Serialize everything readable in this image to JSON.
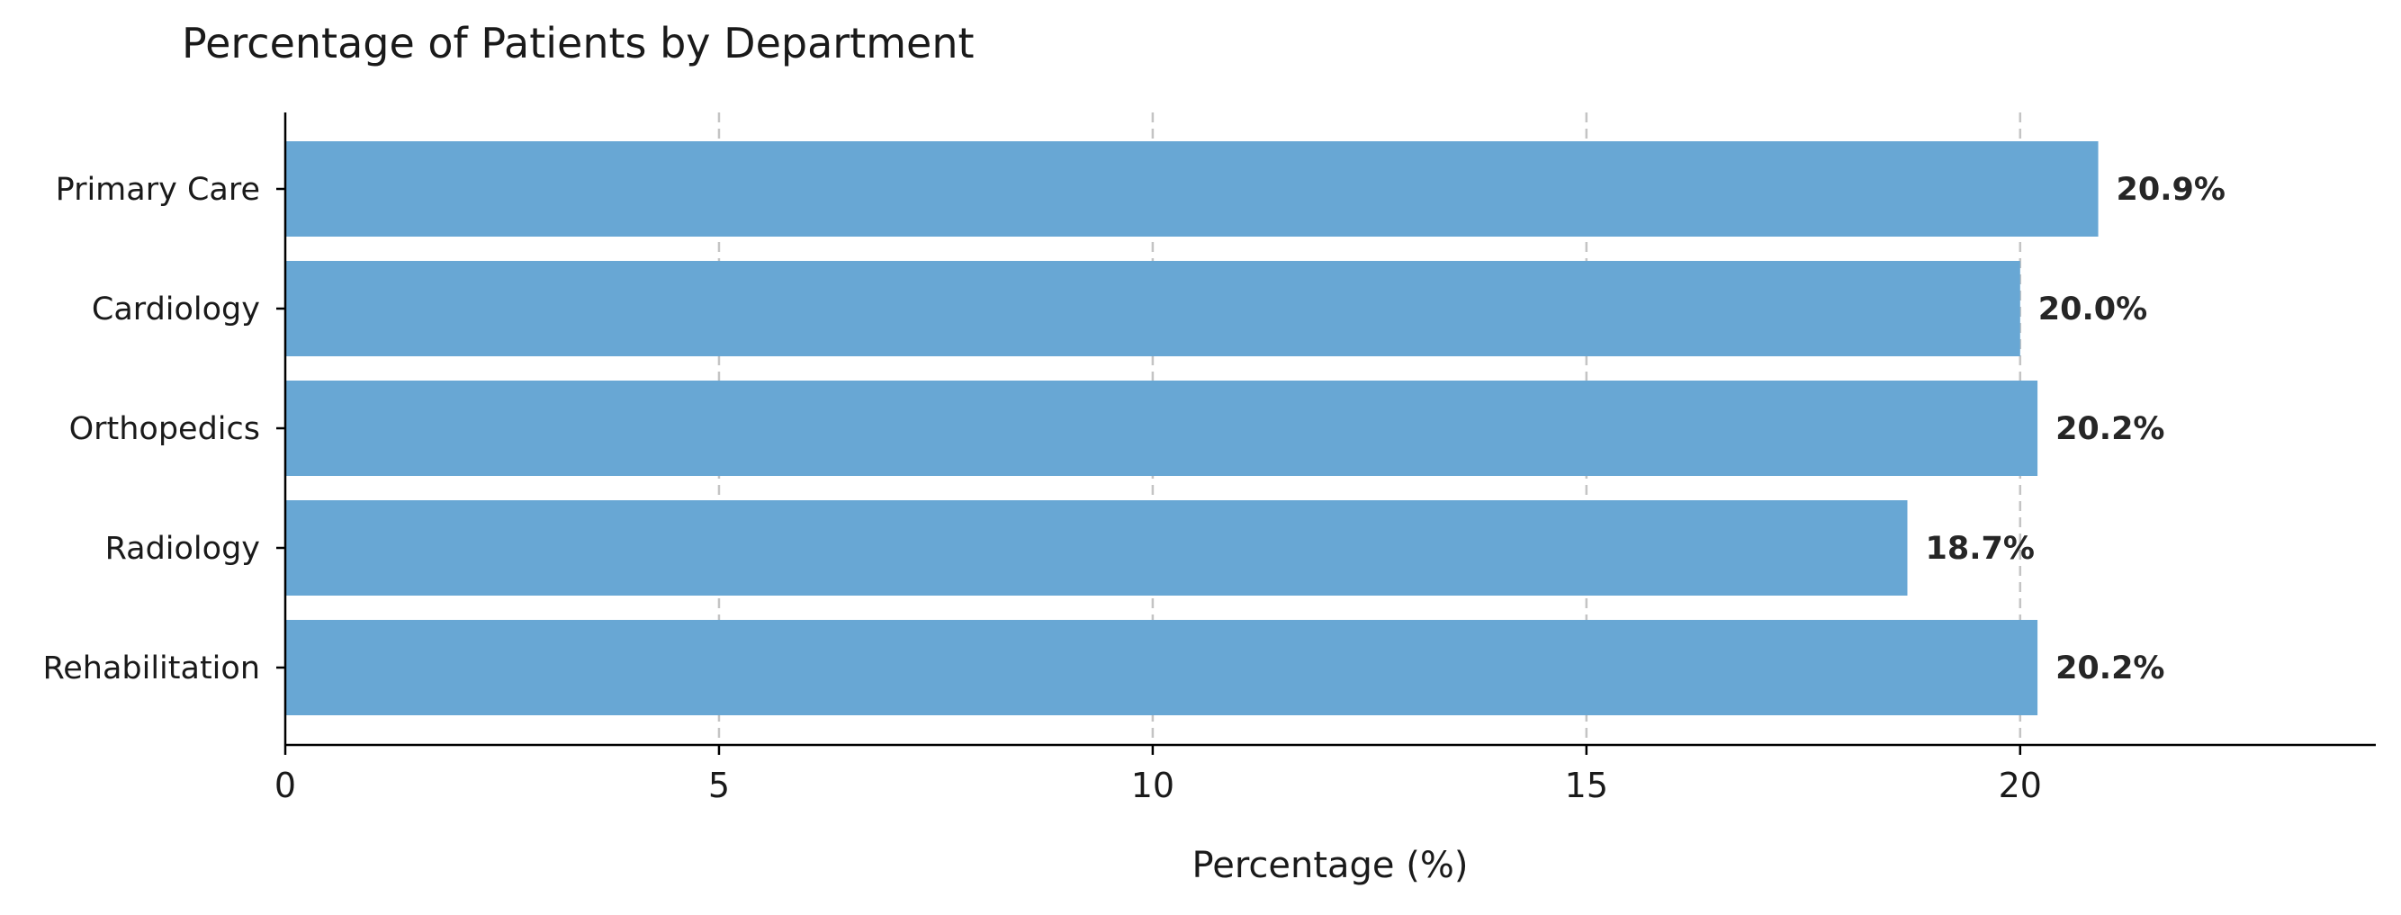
{
  "chart_data": {
    "type": "bar",
    "orientation": "horizontal",
    "title": "Percentage of Patients by Department",
    "xlabel": "Percentage (%)",
    "ylabel": "",
    "categories": [
      "Primary Care",
      "Cardiology",
      "Orthopedics",
      "Radiology",
      "Rehabilitation"
    ],
    "values": [
      20.9,
      20.0,
      20.2,
      18.7,
      20.2
    ],
    "data_labels": [
      "20.9%",
      "20.0%",
      "20.2%",
      "18.7%",
      "20.2%"
    ],
    "xlim": [
      0,
      24.1
    ],
    "xticks": [
      0,
      5,
      10,
      15,
      20
    ],
    "xtick_labels": [
      "0",
      "5",
      "10",
      "15",
      "20"
    ],
    "grid": "vertical dashed",
    "legend": "none",
    "colors": {
      "bar": "#68a7d4",
      "grid": "#c4c4c4",
      "axis": "#000000",
      "text": "#1a1a1a"
    }
  }
}
